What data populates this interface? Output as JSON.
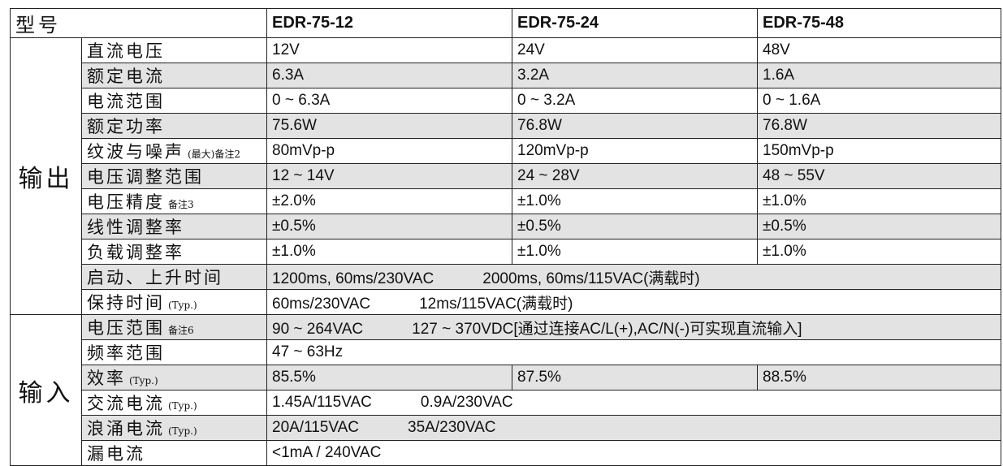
{
  "header": {
    "model_label": "型号",
    "models": [
      "EDR-75-12",
      "EDR-75-24",
      "EDR-75-48"
    ]
  },
  "groups": [
    {
      "name": "输出",
      "rows": [
        {
          "label": "直流电压",
          "values": [
            "12V",
            "24V",
            "48V"
          ]
        },
        {
          "label": "额定电流",
          "values": [
            "6.3A",
            "3.2A",
            "1.6A"
          ]
        },
        {
          "label": "电流范围",
          "values": [
            "0 ~ 6.3A",
            "0 ~ 3.2A",
            "0 ~ 1.6A"
          ]
        },
        {
          "label": "额定功率",
          "values": [
            "75.6W",
            "76.8W",
            "76.8W"
          ]
        },
        {
          "label": "纹波与噪声",
          "note": "(最大)备注2",
          "values": [
            "80mVp-p",
            "120mVp-p",
            "150mVp-p"
          ]
        },
        {
          "label": "电压调整范围",
          "values": [
            "12 ~ 14V",
            "24 ~ 28V",
            "48 ~ 55V"
          ]
        },
        {
          "label": "电压精度",
          "note": "备注3",
          "values": [
            "±2.0%",
            "±1.0%",
            "±1.0%"
          ]
        },
        {
          "label": "线性调整率",
          "values": [
            "±0.5%",
            "±0.5%",
            "±0.5%"
          ]
        },
        {
          "label": "负载调整率",
          "values": [
            "±1.0%",
            "±1.0%",
            "±1.0%"
          ]
        },
        {
          "label": "启动、上升时间",
          "spans": [
            "1200ms, 60ms/230VAC",
            "2000ms, 60ms/115VAC(满载时)"
          ]
        },
        {
          "label": "保持时间",
          "note": "(Typ.)",
          "spans": [
            "60ms/230VAC",
            "12ms/115VAC(满载时)"
          ]
        }
      ]
    },
    {
      "name": "输入",
      "rows": [
        {
          "label": "电压范围",
          "note": "备注6",
          "spans": [
            "90 ~ 264VAC",
            "127 ~ 370VDC[通过连接AC/L(+),AC/N(-)可实现直流输入]"
          ]
        },
        {
          "label": "频率范围",
          "spans": [
            "47 ~ 63Hz"
          ]
        },
        {
          "label": "效率",
          "note": "(Typ.)",
          "values": [
            "85.5%",
            "87.5%",
            "88.5%"
          ]
        },
        {
          "label": "交流电流",
          "note": "(Typ.)",
          "spans": [
            "1.45A/115VAC",
            "0.9A/230VAC"
          ]
        },
        {
          "label": "浪涌电流",
          "note": "(Typ.)",
          "spans": [
            "20A/115VAC",
            "35A/230VAC"
          ]
        },
        {
          "label": "漏电流",
          "spans": [
            "<1mA / 240VAC"
          ]
        }
      ]
    }
  ]
}
